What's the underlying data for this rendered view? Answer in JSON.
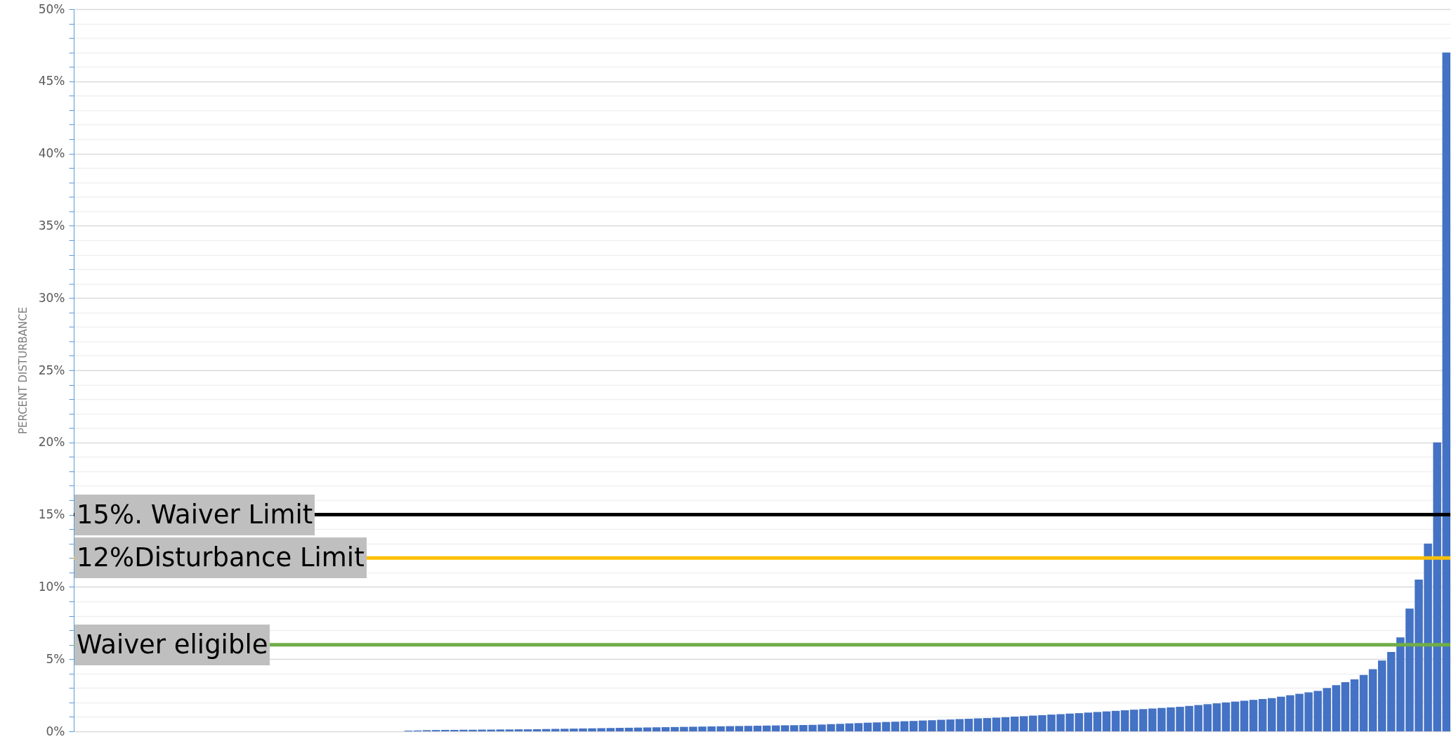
{
  "chart_data": {
    "type": "bar",
    "ylabel": "PERCENT DISTURBANCE",
    "categories": [
      null,
      null,
      null,
      null,
      null,
      null,
      null,
      null,
      null,
      null,
      null,
      null,
      null,
      null,
      null,
      null,
      null,
      null,
      null,
      null,
      null,
      null,
      null,
      null,
      null,
      null,
      null,
      null,
      null,
      null,
      null,
      null,
      null,
      null,
      null,
      null,
      null,
      null,
      null,
      null,
      null,
      null,
      null,
      null,
      null,
      null,
      null,
      null,
      null,
      null,
      null,
      null,
      null,
      null,
      null,
      null,
      null,
      null,
      null,
      null,
      null,
      null,
      null,
      null,
      null,
      null,
      null,
      null,
      null,
      null,
      null,
      null,
      null,
      null,
      null,
      null,
      null,
      null,
      null,
      null,
      null,
      null,
      null,
      null,
      null,
      null,
      null,
      null,
      null,
      null,
      null,
      null,
      null,
      null,
      null,
      null,
      null,
      null,
      null,
      null,
      null,
      null,
      null,
      null,
      null,
      null,
      null,
      null,
      null,
      null,
      null,
      null,
      null,
      null,
      null,
      null,
      null,
      null,
      null,
      null,
      null,
      null,
      null,
      null,
      null,
      null,
      null,
      null,
      null,
      null,
      null,
      null,
      null,
      null,
      null,
      null,
      null,
      null,
      null,
      null,
      null,
      null,
      null,
      null,
      null,
      null,
      null,
      null,
      null,
      null
    ],
    "values": [
      0,
      0,
      0,
      0,
      0,
      0,
      0,
      0,
      0,
      0,
      0,
      0,
      0,
      0,
      0,
      0,
      0,
      0,
      0,
      0,
      0,
      0,
      0,
      0,
      0,
      0,
      0,
      0,
      0,
      0,
      0,
      0,
      0,
      0,
      0,
      0,
      0.05,
      0.06,
      0.08,
      0.09,
      0.1,
      0.1,
      0.11,
      0.11,
      0.12,
      0.12,
      0.13,
      0.13,
      0.14,
      0.14,
      0.15,
      0.16,
      0.17,
      0.18,
      0.19,
      0.2,
      0.21,
      0.22,
      0.23,
      0.24,
      0.25,
      0.26,
      0.27,
      0.28,
      0.29,
      0.3,
      0.31,
      0.32,
      0.33,
      0.34,
      0.35,
      0.36,
      0.37,
      0.38,
      0.39,
      0.4,
      0.41,
      0.42,
      0.43,
      0.44,
      0.45,
      0.47,
      0.5,
      0.52,
      0.55,
      0.57,
      0.6,
      0.62,
      0.65,
      0.67,
      0.7,
      0.72,
      0.75,
      0.77,
      0.8,
      0.82,
      0.85,
      0.87,
      0.9,
      0.92,
      0.95,
      0.98,
      1.02,
      1.05,
      1.09,
      1.12,
      1.16,
      1.19,
      1.23,
      1.26,
      1.3,
      1.34,
      1.38,
      1.42,
      1.46,
      1.5,
      1.54,
      1.58,
      1.62,
      1.66,
      1.7,
      1.76,
      1.82,
      1.88,
      1.94,
      2.0,
      2.06,
      2.12,
      2.18,
      2.24,
      2.3,
      2.4,
      2.5,
      2.6,
      2.7,
      2.8,
      3.0,
      3.2,
      3.4,
      3.6,
      3.9,
      4.3,
      4.9,
      5.5,
      6.5,
      8.5,
      10.5,
      13,
      20,
      47
    ],
    "color": "#4472c4",
    "ylim": [
      0,
      50
    ],
    "yticks": [
      {
        "value": 0,
        "label": "0%"
      },
      {
        "value": 1,
        "label": null
      },
      {
        "value": 2,
        "label": null
      },
      {
        "value": 3,
        "label": null
      },
      {
        "value": 4,
        "label": null
      },
      {
        "value": 5,
        "label": "5%"
      },
      {
        "value": 6,
        "label": null
      },
      {
        "value": 7,
        "label": null
      },
      {
        "value": 8,
        "label": null
      },
      {
        "value": 9,
        "label": null
      },
      {
        "value": 10,
        "label": "10%"
      },
      {
        "value": 11,
        "label": null
      },
      {
        "value": 12,
        "label": null
      },
      {
        "value": 13,
        "label": null
      },
      {
        "value": 14,
        "label": null
      },
      {
        "value": 15,
        "label": "15%"
      },
      {
        "value": 16,
        "label": null
      },
      {
        "value": 17,
        "label": null
      },
      {
        "value": 18,
        "label": null
      },
      {
        "value": 19,
        "label": null
      },
      {
        "value": 20,
        "label": "20%"
      },
      {
        "value": 21,
        "label": null
      },
      {
        "value": 22,
        "label": null
      },
      {
        "value": 23,
        "label": null
      },
      {
        "value": 24,
        "label": null
      },
      {
        "value": 25,
        "label": "25%"
      },
      {
        "value": 26,
        "label": null
      },
      {
        "value": 27,
        "label": null
      },
      {
        "value": 28,
        "label": null
      },
      {
        "value": 29,
        "label": null
      },
      {
        "value": 30,
        "label": "30%"
      },
      {
        "value": 31,
        "label": null
      },
      {
        "value": 32,
        "label": null
      },
      {
        "value": 33,
        "label": null
      },
      {
        "value": 34,
        "label": null
      },
      {
        "value": 35,
        "label": "35%"
      },
      {
        "value": 36,
        "label": null
      },
      {
        "value": 37,
        "label": null
      },
      {
        "value": 38,
        "label": null
      },
      {
        "value": 39,
        "label": null
      },
      {
        "value": 40,
        "label": "40%"
      },
      {
        "value": 41,
        "label": null
      },
      {
        "value": 42,
        "label": null
      },
      {
        "value": 43,
        "label": null
      },
      {
        "value": 44,
        "label": null
      },
      {
        "value": 45,
        "label": "45%"
      },
      {
        "value": 46,
        "label": null
      },
      {
        "value": 47,
        "label": null
      },
      {
        "value": 48,
        "label": null
      },
      {
        "value": 49,
        "label": null
      },
      {
        "value": 50,
        "label": "50%"
      }
    ],
    "grid": "y",
    "ref_lines": [
      {
        "axis": "y",
        "value": 15,
        "label": "15%. Waiver Limit",
        "color": "#000000"
      },
      {
        "axis": "y",
        "value": 12,
        "label": "12%Disturbance Limit",
        "color": "#ffc000"
      },
      {
        "axis": "y",
        "value": 6,
        "label": "Waiver eligible",
        "color": "#70ad47"
      }
    ]
  }
}
